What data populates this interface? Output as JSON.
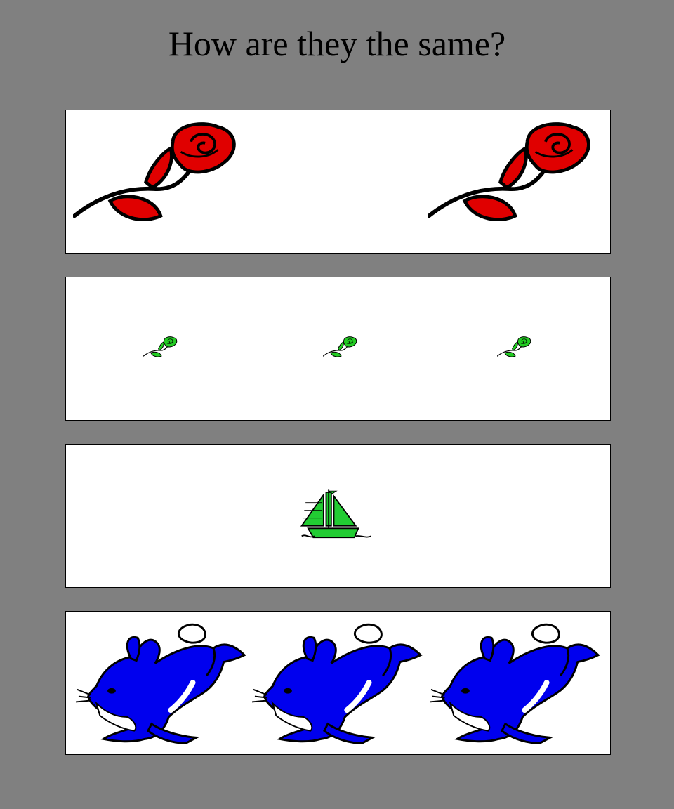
{
  "title": "How are they the same?",
  "panels": [
    {
      "label": "roses",
      "icon": "rose-icon",
      "count": 2,
      "size": "large",
      "color": "#e00000"
    },
    {
      "label": "small roses",
      "icon": "rose-icon",
      "count": 3,
      "size": "small",
      "color": "#22cc22"
    },
    {
      "label": "sailboat",
      "icon": "sailboat-icon",
      "count": 1,
      "size": "medium",
      "color": "#22cc33"
    },
    {
      "label": "rabbits",
      "icon": "rabbit-icon",
      "count": 3,
      "size": "large",
      "color": "#0000ee"
    }
  ]
}
